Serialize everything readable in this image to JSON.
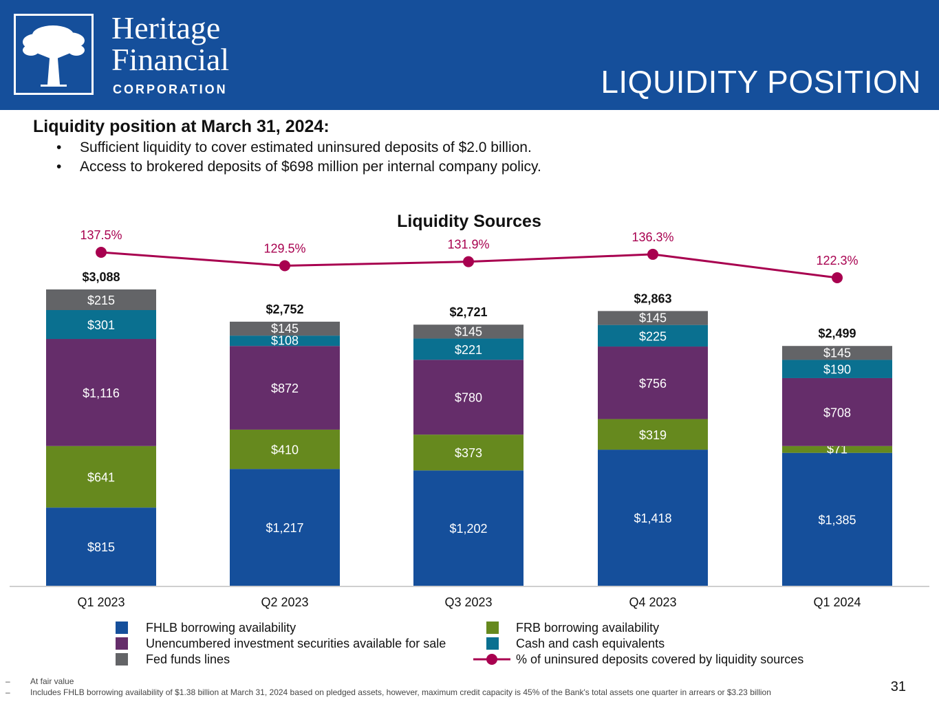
{
  "header": {
    "logo_line1": "Heritage",
    "logo_line2": "Financial",
    "logo_sub": "CORPORATION",
    "title": "LIQUIDITY POSITION",
    "logo_icon": "tree-icon"
  },
  "intro": {
    "title": "Liquidity position at March 31, 2024:",
    "bullet_glyph": "•",
    "bullets": [
      "Sufficient liquidity to cover estimated uninsured deposits of $2.0 billion.",
      "Access to brokered deposits of $698 million per internal company policy."
    ]
  },
  "chart_data": {
    "type": "bar",
    "stacked": true,
    "title": "Liquidity Sources",
    "categories": [
      "Q1 2023",
      "Q2 2023",
      "Q3 2023",
      "Q4 2023",
      "Q1 2024"
    ],
    "totals": [
      "$3,088",
      "$2,752",
      "$2,721",
      "$2,863",
      "$2,499"
    ],
    "total_values": [
      3088,
      2752,
      2721,
      2863,
      2499
    ],
    "series": [
      {
        "name": "FHLB borrowing availability",
        "color": "#154f9b",
        "values": [
          815,
          1217,
          1202,
          1418,
          1385
        ],
        "labels": [
          "$815",
          "$1,217",
          "$1,202",
          "$1,418",
          "$1,385"
        ]
      },
      {
        "name": "FRB borrowing availability",
        "color": "#66891e",
        "values": [
          641,
          410,
          373,
          319,
          71
        ],
        "labels": [
          "$641",
          "$410",
          "$373",
          "$319",
          "$71"
        ]
      },
      {
        "name": "Unencumbered investment securities available for sale",
        "color": "#652d6a",
        "values": [
          1116,
          872,
          780,
          756,
          708
        ],
        "labels": [
          "$1,116",
          "$872",
          "$780",
          "$756",
          "$708"
        ]
      },
      {
        "name": "Cash and cash equivalents",
        "color": "#0a7090",
        "values": [
          301,
          108,
          221,
          225,
          190
        ],
        "labels": [
          "$301",
          "$108",
          "$221",
          "$225",
          "$190"
        ]
      },
      {
        "name": "Fed funds lines",
        "color": "#636467",
        "values": [
          215,
          145,
          145,
          145,
          145
        ],
        "labels": [
          "$215",
          "$145",
          "$145",
          "$145",
          "$145"
        ]
      }
    ],
    "line": {
      "name": "% of uninsured deposits covered by liquidity sources",
      "color": "#a8004f",
      "values": [
        137.5,
        129.5,
        131.9,
        136.3,
        122.3
      ],
      "labels": [
        "137.5%",
        "129.5%",
        "131.9%",
        "136.3%",
        "122.3%"
      ]
    },
    "legend": {
      "left": [
        "FHLB borrowing availability",
        "Unencumbered investment securities available for sale",
        "Fed funds lines"
      ],
      "right": [
        "FRB borrowing availability",
        "Cash and cash equivalents",
        "% of uninsured deposits covered by liquidity sources"
      ]
    },
    "ylim": [
      0,
      3100
    ],
    "legend_position": "bottom",
    "grid": false
  },
  "footnotes": {
    "dash": "–",
    "items": [
      "At fair value",
      "Includes FHLB borrowing availability of $1.38 billion at March 31, 2024 based on pledged assets, however, maximum credit capacity is 45% of the Bank's total assets one quarter in arrears or $3.23 billion"
    ]
  },
  "page_number": "31"
}
